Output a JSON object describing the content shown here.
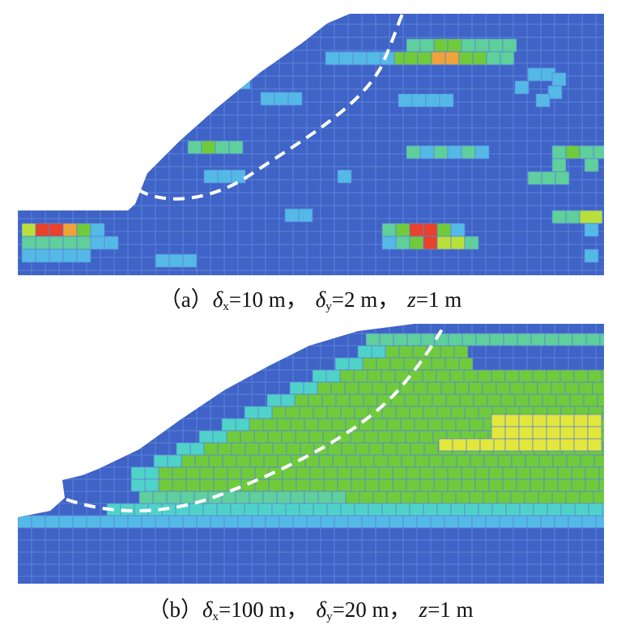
{
  "panels": [
    {
      "id": "a",
      "caption": {
        "prefix": "（a）",
        "dx_symbol": "δ",
        "dx_sub": "x",
        "dx_value": "=10 m，",
        "dy_symbol": "δ",
        "dy_sub": "y",
        "dy_value": "=2 m，",
        "z_symbol": "z",
        "z_value": "=1 m"
      }
    },
    {
      "id": "b",
      "caption": {
        "prefix": "（b）",
        "dx_symbol": "δ",
        "dx_sub": "x",
        "dx_value": "=100 m，",
        "dy_symbol": "δ",
        "dy_sub": "y",
        "dy_value": "=20 m，",
        "z_symbol": "z",
        "z_value": "=1 m"
      }
    }
  ],
  "colors": {
    "base": "#3f63c6",
    "edge": "#5b84d9",
    "light_blue": "#54b9e6",
    "cyan": "#4fd3c8",
    "teal": "#5fcf9c",
    "green": "#6fcb3c",
    "lime": "#b9e03a",
    "yellow": "#e3e73c",
    "orange": "#f0a23a",
    "red": "#e8412c",
    "slip_line": "#ffffff"
  }
}
